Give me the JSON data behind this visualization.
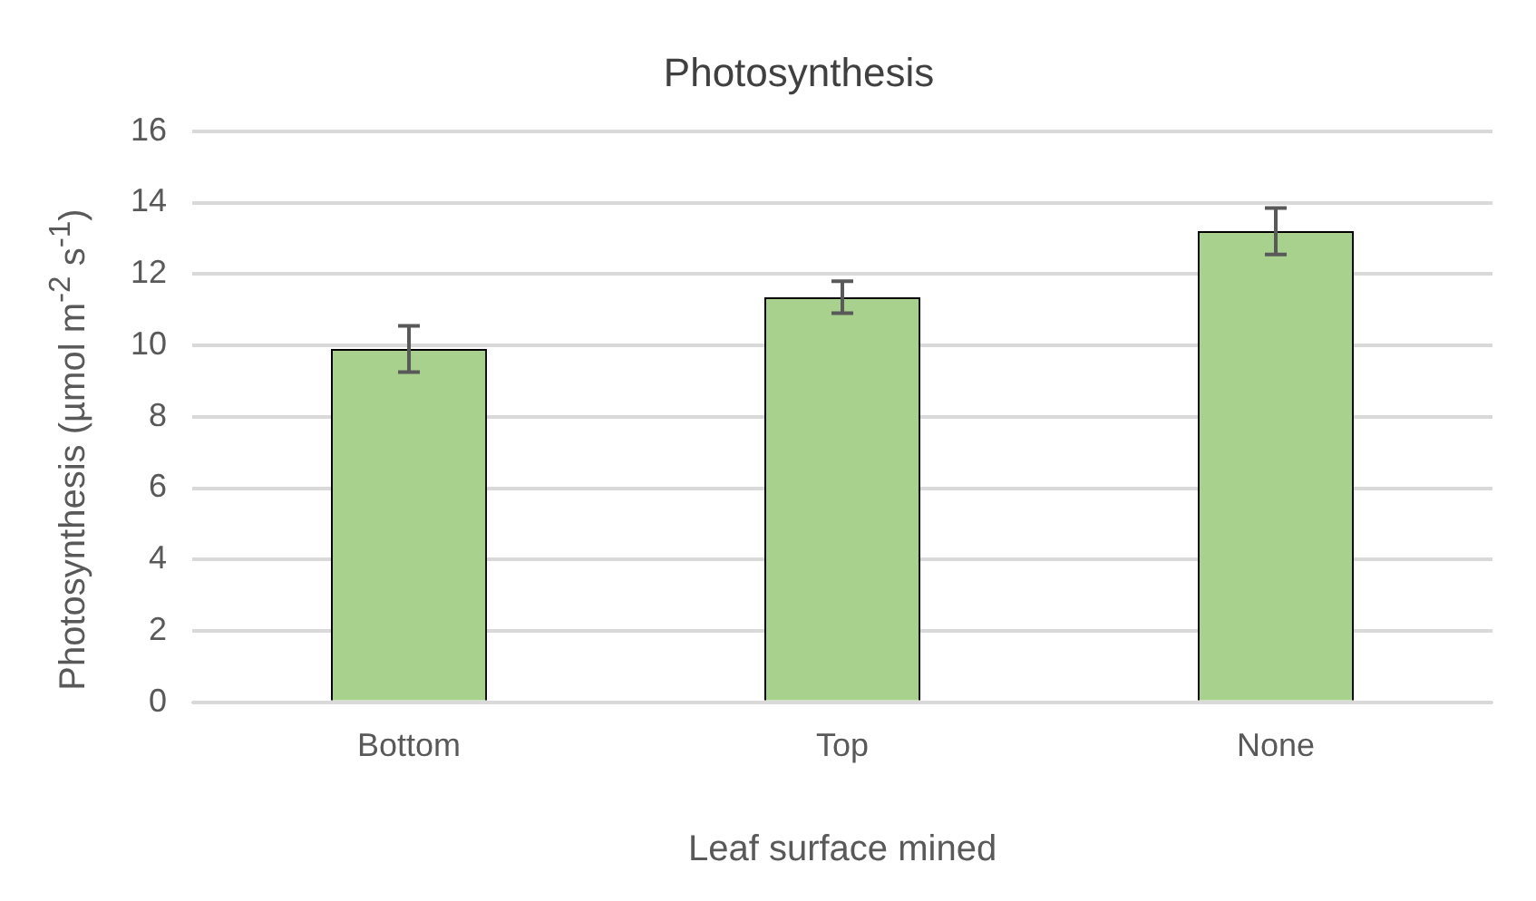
{
  "chart_data": {
    "type": "bar",
    "title": "Photosynthesis",
    "xlabel": "Leaf surface mined",
    "ylabel": "Photosynthesis (µmol m$^{-2}$ s$^{-1}$)",
    "categories": [
      "Bottom",
      "Top",
      "None"
    ],
    "values": [
      9.9,
      11.35,
      13.2
    ],
    "errors": [
      0.65,
      0.45,
      0.65
    ],
    "color": "#a9d18e",
    "ylim": [
      0,
      16
    ],
    "yticks": [
      0,
      2,
      4,
      6,
      8,
      10,
      12,
      14,
      16
    ],
    "grid": "y",
    "legend": false
  }
}
